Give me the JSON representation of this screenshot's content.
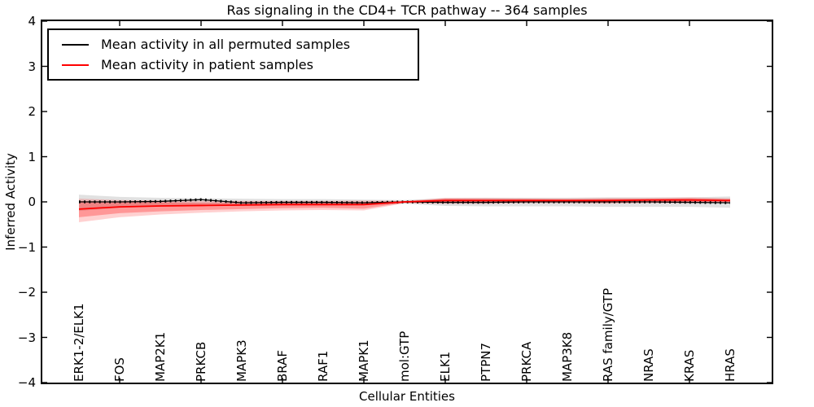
{
  "chart_data": {
    "type": "line",
    "title": "Ras signaling in the CD4+ TCR pathway -- 364 samples",
    "xlabel": "Cellular Entities",
    "ylabel": "Inferred Activity",
    "ylim": [
      -4,
      4
    ],
    "yticks": [
      4,
      3,
      2,
      1,
      0,
      -1,
      -2,
      -3,
      -4
    ],
    "x_major_tick_categories": [
      "FOS",
      "PRKCB",
      "BRAF",
      "MAPK1",
      "ELK1",
      "PRKCA",
      "RAS family/GTP",
      "KRAS"
    ],
    "grid": false,
    "legend_position": "upper left",
    "background_color": "#ffffff",
    "frame_color": "#000000",
    "categories": [
      "ERK1-2/ELK1",
      "FOS",
      "MAP2K1",
      "PRKCB",
      "MAPK3",
      "BRAF",
      "RAF1",
      "MAPK1",
      "mol:GTP",
      "ELK1",
      "PTPN7",
      "PRKCA",
      "MAP3K8",
      "RAS family/GTP",
      "NRAS",
      "KRAS",
      "HRAS"
    ],
    "series": [
      {
        "name": "Mean activity in all permuted samples",
        "color": "#000000",
        "line_style": "solid with small tick markers",
        "values": [
          0.0,
          0.0,
          0.01,
          0.05,
          -0.02,
          -0.01,
          -0.01,
          -0.02,
          0.0,
          -0.01,
          -0.01,
          0.0,
          0.0,
          0.0,
          0.0,
          -0.01,
          -0.02
        ],
        "band": {
          "label": "permuted spread (gray band)",
          "color": "#aaaaaa",
          "opacity": 0.35,
          "upper": [
            0.16,
            0.11,
            0.09,
            0.08,
            0.07,
            0.06,
            0.06,
            0.05,
            0.04,
            0.08,
            0.09,
            0.09,
            0.09,
            0.1,
            0.1,
            0.1,
            0.12
          ],
          "lower": [
            -0.2,
            -0.13,
            -0.1,
            -0.09,
            -0.09,
            -0.08,
            -0.08,
            -0.07,
            -0.04,
            -0.09,
            -0.1,
            -0.1,
            -0.1,
            -0.11,
            -0.11,
            -0.11,
            -0.13
          ]
        }
      },
      {
        "name": "Mean activity in patient samples",
        "color": "#ff0000",
        "line_style": "solid",
        "values": [
          -0.16,
          -0.11,
          -0.09,
          -0.08,
          -0.07,
          -0.06,
          -0.06,
          -0.06,
          0.0,
          0.03,
          0.03,
          0.03,
          0.03,
          0.03,
          0.04,
          0.04,
          0.03
        ],
        "band_outer": {
          "label": "patient spread (light red band)",
          "color": "#ff0000",
          "opacity": 0.18,
          "upper": [
            0.07,
            0.04,
            0.03,
            0.02,
            0.02,
            0.02,
            0.02,
            0.03,
            0.02,
            0.09,
            0.09,
            0.08,
            0.08,
            0.09,
            0.09,
            0.1,
            0.08
          ],
          "lower": [
            -0.45,
            -0.34,
            -0.28,
            -0.24,
            -0.21,
            -0.19,
            -0.18,
            -0.19,
            -0.03,
            -0.04,
            -0.04,
            -0.03,
            -0.03,
            -0.04,
            -0.03,
            -0.03,
            -0.02
          ]
        },
        "band_inner": {
          "label": "patient spread (dark red band)",
          "color": "#ff0000",
          "opacity": 0.28,
          "upper": [
            0.02,
            0.0,
            -0.01,
            -0.02,
            -0.02,
            -0.01,
            -0.01,
            0.0,
            0.01,
            0.07,
            0.06,
            0.06,
            0.05,
            0.06,
            0.06,
            0.08,
            0.06
          ],
          "lower": [
            -0.34,
            -0.25,
            -0.21,
            -0.18,
            -0.16,
            -0.14,
            -0.13,
            -0.15,
            -0.02,
            -0.02,
            -0.02,
            -0.01,
            -0.01,
            -0.02,
            -0.01,
            -0.01,
            0.0
          ]
        }
      }
    ]
  }
}
